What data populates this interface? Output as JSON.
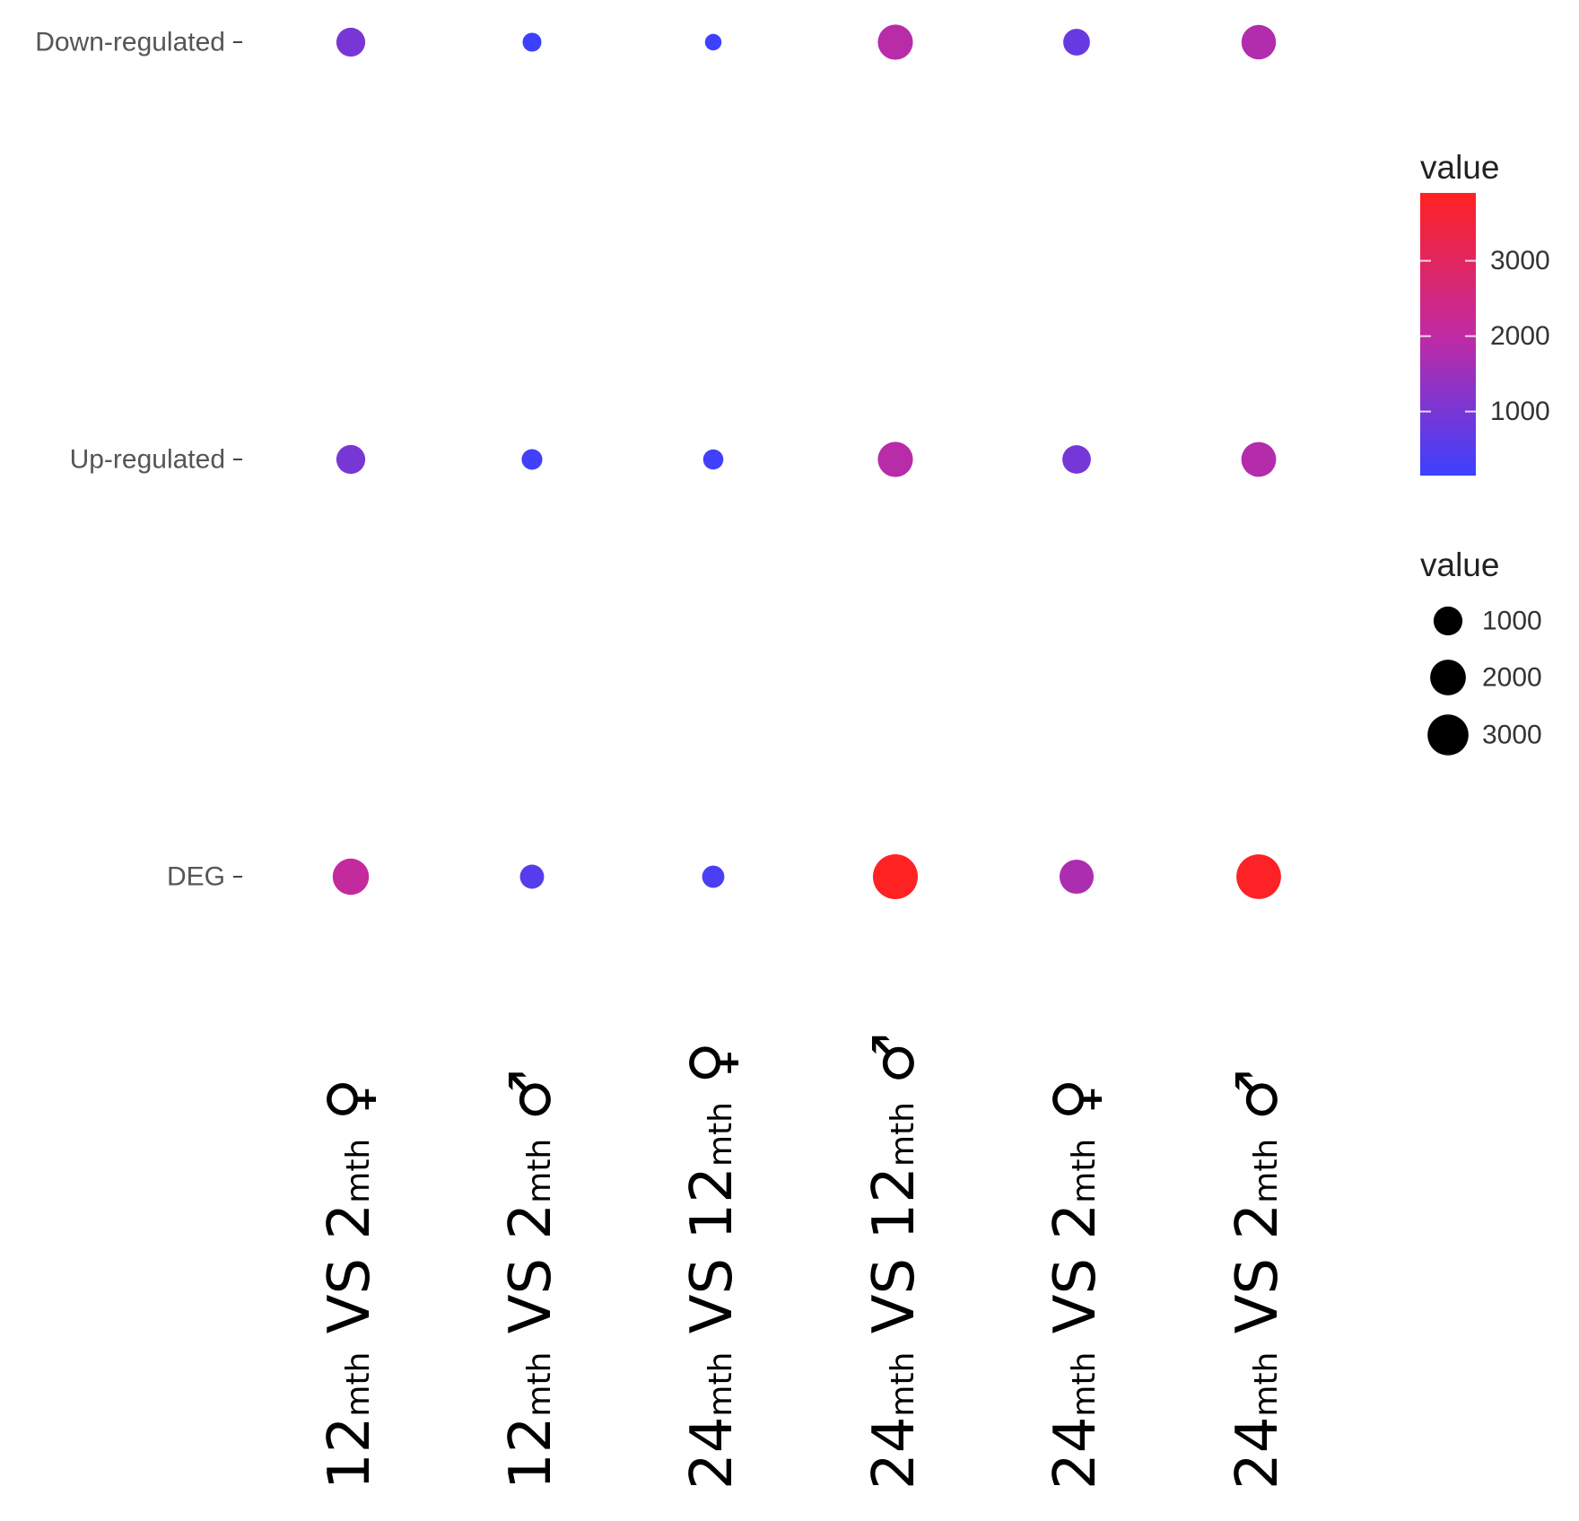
{
  "chart_data": {
    "type": "scatter",
    "title": "",
    "xlabel": "",
    "ylabel": "",
    "categories": [
      {
        "from": "12",
        "to": "2",
        "unit": "mth",
        "vs": "VS",
        "sex": "♀"
      },
      {
        "from": "12",
        "to": "2",
        "unit": "mth",
        "vs": "VS",
        "sex": "♂"
      },
      {
        "from": "24",
        "to": "12",
        "unit": "mth",
        "vs": "VS",
        "sex": "♀"
      },
      {
        "from": "24",
        "to": "12",
        "unit": "mth",
        "vs": "VS",
        "sex": "♂"
      },
      {
        "from": "24",
        "to": "2",
        "unit": "mth",
        "vs": "VS",
        "sex": "♀"
      },
      {
        "from": "24",
        "to": "2",
        "unit": "mth",
        "vs": "VS",
        "sex": "♂"
      }
    ],
    "rows": [
      "Down-regulated",
      "Up-regulated",
      "DEG"
    ],
    "values": [
      [
        1000,
        150,
        60,
        1900,
        750,
        1800
      ],
      [
        1000,
        250,
        220,
        1900,
        950,
        1850
      ],
      [
        2100,
        500,
        350,
        3900,
        1750,
        3850
      ]
    ],
    "color_legend": {
      "title": "value",
      "ticks": [
        1000,
        2000,
        3000
      ],
      "range": [
        150,
        3900
      ],
      "low_color": "#3c41ff",
      "mid_color": "#c12aa2",
      "high_color": "#ff2222"
    },
    "size_legend": {
      "title": "value",
      "ticks": [
        1000,
        2000,
        3000
      ],
      "color": "#000000"
    },
    "legend_position": "right"
  }
}
